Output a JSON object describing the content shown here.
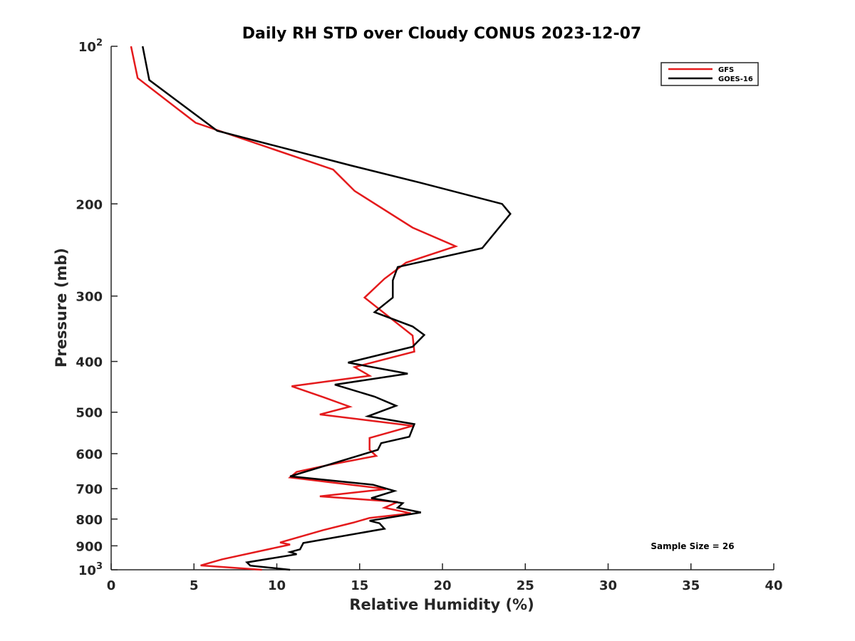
{
  "chart_data": {
    "type": "line",
    "title": "Daily RH STD over Cloudy CONUS 2023-12-07",
    "xlabel": "Relative Humidity (%)",
    "ylabel": "Pressure (mb)",
    "xlim": [
      0,
      40
    ],
    "ylim": [
      100,
      1000
    ],
    "yscale": "log",
    "y_reversed": true,
    "grid": false,
    "legend_position": "top-right",
    "x_ticks": [
      "0",
      "5",
      "10",
      "15",
      "20",
      "25",
      "30",
      "35",
      "40"
    ],
    "x_tick_values": [
      0,
      5,
      10,
      15,
      20,
      25,
      30,
      35,
      40
    ],
    "y_ticks": [
      {
        "value": 100,
        "base": "10",
        "exp": "2"
      },
      {
        "value": 200,
        "label": "200"
      },
      {
        "value": 300,
        "label": "300"
      },
      {
        "value": 400,
        "label": "400"
      },
      {
        "value": 500,
        "label": "500"
      },
      {
        "value": 600,
        "label": "600"
      },
      {
        "value": 700,
        "label": "700"
      },
      {
        "value": 800,
        "label": "800"
      },
      {
        "value": 900,
        "label": "900"
      },
      {
        "value": 1000,
        "base": "10",
        "exp": "3"
      }
    ],
    "annotation": "Sample Size = 26",
    "series": [
      {
        "name": "GFS",
        "color": "#e41a1c",
        "x": [
          1.2,
          1.6,
          5.1,
          13.4,
          14.7,
          18.2,
          20.8,
          17.8,
          16.5,
          15.3,
          18.2,
          18.3,
          14.7,
          15.6,
          10.9,
          12.8,
          14.4,
          12.6,
          18.2,
          15.6,
          15.6,
          16.0,
          13.2,
          11.2,
          10.8,
          16.6,
          12.6,
          17.3,
          16.5,
          18.1,
          15.6,
          14.6,
          12.8,
          10.2,
          10.8,
          6.7,
          5.4,
          9.1
        ],
        "y": [
          100,
          115,
          140,
          172,
          189,
          222,
          241,
          259,
          278,
          302,
          357,
          383,
          410,
          426,
          446,
          468,
          488,
          505,
          531,
          560,
          590,
          606,
          630,
          650,
          666,
          701,
          724,
          742,
          761,
          780,
          796,
          813,
          840,
          887,
          895,
          955,
          981,
          1000
        ]
      },
      {
        "name": "GOES-16",
        "color": "#000000",
        "x": [
          1.9,
          2.3,
          6.4,
          14.5,
          18.6,
          23.6,
          24.1,
          22.4,
          17.3,
          17.0,
          17.0,
          15.9,
          18.2,
          18.9,
          18.2,
          14.3,
          17.9,
          13.5,
          15.9,
          17.2,
          15.5,
          18.3,
          18.0,
          16.3,
          16.1,
          10.8,
          15.8,
          17.1,
          15.7,
          17.6,
          17.3,
          18.7,
          15.6,
          16.2,
          16.5,
          11.6,
          11.4,
          10.8,
          11.2,
          8.2,
          8.4,
          10.8
        ],
        "y": [
          100,
          116,
          145,
          169,
          182,
          200,
          209,
          243,
          264,
          280,
          302,
          322,
          343,
          356,
          375,
          402,
          422,
          443,
          467,
          486,
          509,
          527,
          557,
          573,
          590,
          663,
          688,
          707,
          730,
          746,
          761,
          777,
          806,
          815,
          835,
          889,
          914,
          925,
          934,
          968,
          982,
          1000
        ]
      }
    ]
  }
}
